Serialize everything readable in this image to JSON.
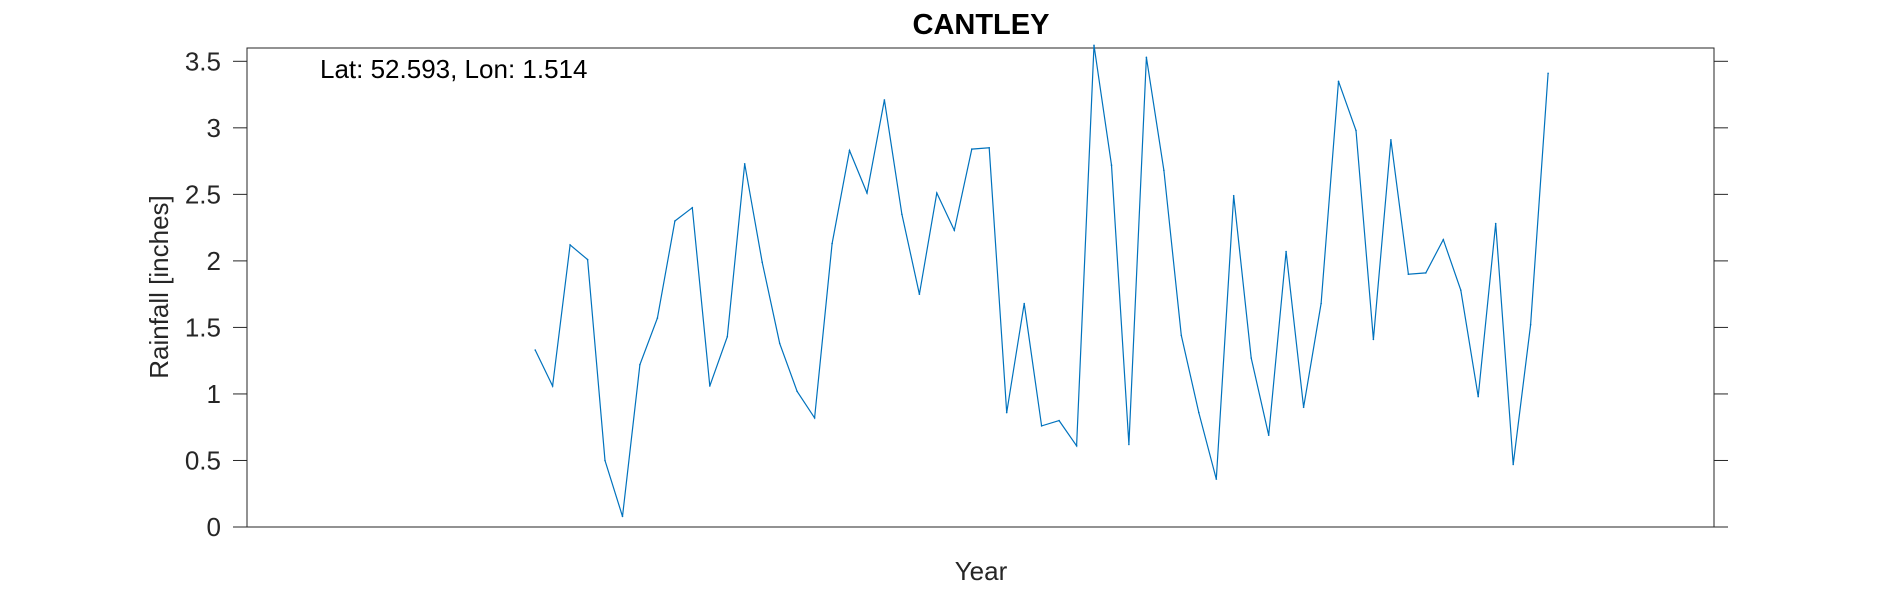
{
  "chart_data": {
    "type": "line",
    "title": "CANTLEY",
    "xlabel": "Year",
    "ylabel": "Rainfall [inches]",
    "annotation": "Lat: 52.593, Lon: 1.514",
    "ylim": [
      0,
      3.6
    ],
    "xlim": [
      0,
      84
    ],
    "y_ticks": [
      0,
      0.5,
      1,
      1.5,
      2,
      2.5,
      3,
      3.5
    ],
    "y_tick_labels": [
      "0",
      "0.5",
      "1",
      "1.5",
      "2",
      "2.5",
      "3",
      "3.5"
    ],
    "x_tick_labels_visible": false,
    "grid": false,
    "line_color": "#0072BD",
    "series": [
      {
        "x": [
          16.5,
          17.5,
          18.5,
          19.5,
          20.5,
          21.5,
          22.5,
          23.5,
          24.5,
          25.5,
          26.5,
          27.5,
          28.5,
          29.5,
          30.5,
          31.5,
          32.5,
          33.5,
          34.5,
          35.5,
          36.5,
          37.5,
          38.5,
          39.5,
          40.5,
          41.5,
          42.5,
          43.5,
          44.5,
          45.5,
          46.5,
          47.5,
          48.5,
          49.5,
          50.5,
          51.5,
          52.5,
          53.5,
          54.5,
          55.5,
          56.5,
          57.5,
          58.5,
          59.5,
          60.5,
          61.5,
          62.5,
          63.5,
          64.5,
          65.5,
          66.5,
          67.5,
          68.5,
          69.5,
          70.5,
          71.5,
          72.5,
          73.5,
          74.5
        ],
        "values": [
          1.33,
          1.06,
          2.12,
          2.01,
          0.5,
          0.08,
          1.22,
          1.57,
          2.3,
          2.4,
          1.06,
          1.43,
          2.73,
          1.99,
          1.38,
          1.02,
          0.82,
          2.13,
          2.83,
          2.51,
          3.21,
          2.35,
          1.75,
          2.51,
          2.23,
          2.84,
          2.85,
          0.86,
          1.68,
          0.76,
          0.8,
          0.61,
          3.62,
          2.72,
          0.62,
          3.53,
          2.68,
          1.44,
          0.86,
          0.36,
          2.49,
          1.27,
          0.69,
          2.07,
          0.9,
          1.68,
          3.35,
          2.98,
          1.41,
          2.91,
          1.9,
          1.91,
          2.16,
          1.78,
          0.98,
          2.28,
          0.47,
          1.52,
          3.41
        ]
      }
    ]
  }
}
